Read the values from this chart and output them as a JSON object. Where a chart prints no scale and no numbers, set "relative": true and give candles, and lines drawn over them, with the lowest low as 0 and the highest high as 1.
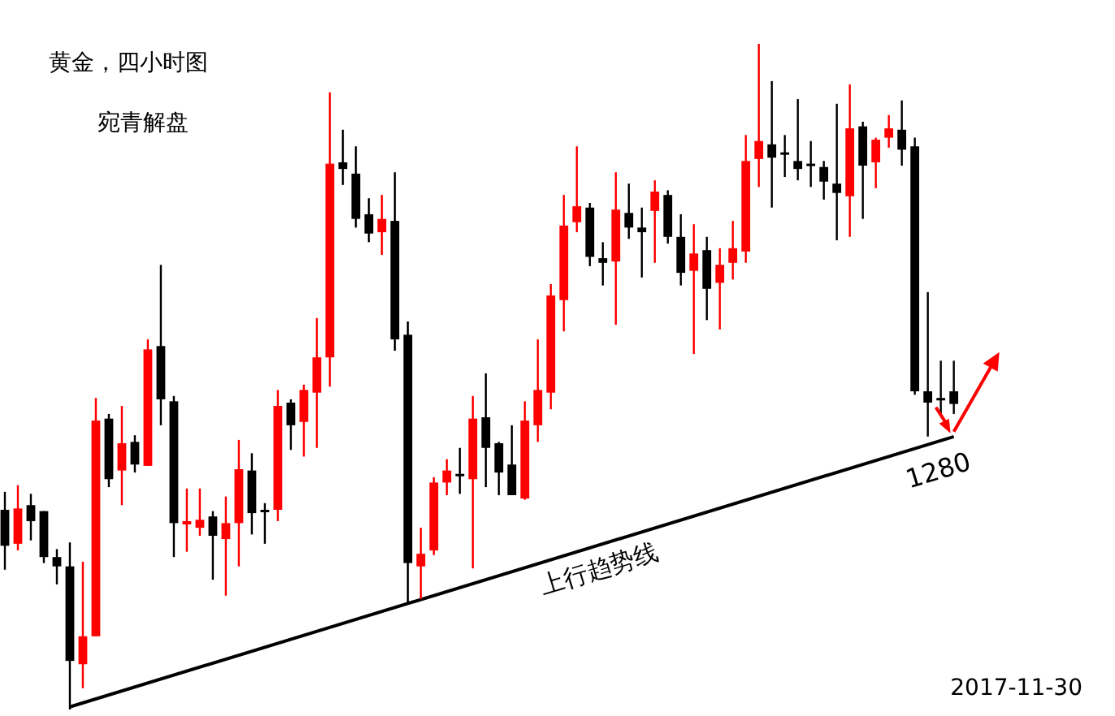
{
  "chart_data": {
    "type": "candlestick",
    "title": "黄金，四小时图",
    "subtitle": "宛青解盘",
    "relative": true,
    "categories": [
      null,
      null,
      null,
      null,
      null,
      null,
      null,
      null,
      null,
      null,
      null,
      null,
      null,
      null,
      null,
      null,
      null,
      null,
      null,
      null,
      null,
      null,
      null,
      null,
      null,
      null,
      null,
      null,
      null,
      null,
      null,
      null,
      null,
      null,
      null,
      null,
      null,
      null,
      null,
      null,
      null,
      null,
      null,
      null,
      null,
      null,
      null,
      null,
      null,
      null,
      null,
      null,
      null,
      null,
      null,
      null,
      null,
      null,
      null,
      null,
      null,
      null,
      null,
      null,
      null,
      null,
      null,
      null,
      null,
      null,
      null,
      null,
      null,
      null
    ],
    "colors": [
      "#000000",
      "#ff0000",
      "#000000",
      "#000000",
      "#000000",
      "#000000",
      "#ff0000",
      "#ff0000",
      "#000000",
      "#ff0000",
      "#000000",
      "#ff0000",
      "#000000",
      "#000000",
      "#ff0000",
      "#ff0000",
      "#000000",
      "#ff0000",
      "#ff0000",
      "#000000",
      "#000000",
      "#ff0000",
      "#000000",
      "#ff0000",
      "#ff0000",
      "#ff0000",
      "#000000",
      "#000000",
      "#000000",
      "#ff0000",
      "#000000",
      "#000000",
      "#ff0000",
      "#ff0000",
      "#ff0000",
      "#000000",
      "#ff0000",
      "#000000",
      "#000000",
      "#000000",
      "#ff0000",
      "#ff0000",
      "#ff0000",
      "#ff0000",
      "#ff0000",
      "#000000",
      "#000000",
      "#ff0000",
      "#000000",
      "#000000",
      "#ff0000",
      "#000000",
      "#000000",
      "#ff0000",
      "#000000",
      "#ff0000",
      "#ff0000",
      "#ff0000",
      "#ff0000",
      "#000000",
      "#000000",
      "#000000",
      "#000000",
      "#000000",
      "#000000",
      "#ff0000",
      "#000000",
      "#ff0000",
      "#ff0000",
      "#000000",
      "#000000",
      "#000000",
      "#000000",
      "#000000"
    ],
    "ohlc": [
      [
        0.3,
        0.327,
        0.21,
        0.246
      ],
      [
        0.249,
        0.337,
        0.239,
        0.302
      ],
      [
        0.307,
        0.324,
        0.254,
        0.283
      ],
      [
        0.298,
        0.298,
        0.22,
        0.229
      ],
      [
        0.229,
        0.241,
        0.188,
        0.215
      ],
      [
        0.215,
        0.251,
        0,
        0.073
      ],
      [
        0.068,
        0.222,
        0.032,
        0.11
      ],
      [
        0.11,
        0.468,
        0.11,
        0.434
      ],
      [
        0.437,
        0.444,
        0.334,
        0.346
      ],
      [
        0.359,
        0.456,
        0.307,
        0.4
      ],
      [
        0.402,
        0.412,
        0.356,
        0.368
      ],
      [
        0.366,
        0.556,
        0.366,
        0.541
      ],
      [
        0.546,
        0.668,
        0.427,
        0.466
      ],
      [
        0.463,
        0.471,
        0.229,
        0.28
      ],
      [
        0.278,
        0.332,
        0.237,
        0.283
      ],
      [
        0.273,
        0.332,
        0.261,
        0.285
      ],
      [
        0.29,
        0.298,
        0.195,
        0.261
      ],
      [
        0.256,
        0.32,
        0.171,
        0.28
      ],
      [
        0.28,
        0.405,
        0.215,
        0.361
      ],
      [
        0.359,
        0.385,
        0.263,
        0.295
      ],
      [
        0.3,
        0.31,
        0.249,
        0.298
      ],
      [
        0.3,
        0.48,
        0.283,
        0.456
      ],
      [
        0.461,
        0.466,
        0.39,
        0.427
      ],
      [
        0.432,
        0.488,
        0.38,
        0.48
      ],
      [
        0.476,
        0.588,
        0.393,
        0.529
      ],
      [
        0.529,
        0.927,
        0.485,
        0.82
      ],
      [
        0.822,
        0.871,
        0.788,
        0.812
      ],
      [
        0.805,
        0.846,
        0.724,
        0.737
      ],
      [
        0.744,
        0.768,
        0.702,
        0.715
      ],
      [
        0.717,
        0.773,
        0.683,
        0.737
      ],
      [
        0.734,
        0.807,
        0.539,
        0.556
      ],
      [
        0.563,
        0.583,
        0.159,
        0.22
      ],
      [
        0.215,
        0.273,
        0.166,
        0.234
      ],
      [
        0.239,
        0.349,
        0.232,
        0.341
      ],
      [
        0.341,
        0.376,
        0.322,
        0.359
      ],
      [
        0.354,
        0.393,
        0.324,
        0.351
      ],
      [
        0.346,
        0.471,
        0.212,
        0.437
      ],
      [
        0.439,
        0.505,
        0.334,
        0.393
      ],
      [
        0.4,
        0.402,
        0.322,
        0.356
      ],
      [
        0.368,
        0.427,
        0.322,
        0.322
      ],
      [
        0.317,
        0.463,
        0.315,
        0.434
      ],
      [
        0.427,
        0.556,
        0.402,
        0.48
      ],
      [
        0.476,
        0.639,
        0.451,
        0.622
      ],
      [
        0.615,
        0.773,
        0.568,
        0.727
      ],
      [
        0.732,
        0.846,
        0.717,
        0.756
      ],
      [
        0.754,
        0.761,
        0.666,
        0.68
      ],
      [
        0.678,
        0.702,
        0.637,
        0.671
      ],
      [
        0.673,
        0.807,
        0.578,
        0.751
      ],
      [
        0.746,
        0.79,
        0.707,
        0.724
      ],
      [
        0.724,
        0.754,
        0.649,
        0.717
      ],
      [
        0.749,
        0.795,
        0.671,
        0.778
      ],
      [
        0.773,
        0.78,
        0.7,
        0.71
      ],
      [
        0.71,
        0.744,
        0.637,
        0.656
      ],
      [
        0.659,
        0.729,
        0.534,
        0.685
      ],
      [
        0.69,
        0.71,
        0.585,
        0.632
      ],
      [
        0.641,
        0.693,
        0.571,
        0.668
      ],
      [
        0.671,
        0.734,
        0.646,
        0.693
      ],
      [
        0.688,
        0.863,
        0.671,
        0.824
      ],
      [
        0.827,
        1,
        0.785,
        0.854
      ],
      [
        0.849,
        0.944,
        0.754,
        0.829
      ],
      [
        0.837,
        0.863,
        0.8,
        0.834
      ],
      [
        0.824,
        0.917,
        0.795,
        0.812
      ],
      [
        0.82,
        0.854,
        0.785,
        0.817
      ],
      [
        0.815,
        0.824,
        0.766,
        0.793
      ],
      [
        0.79,
        0.91,
        0.705,
        0.776
      ],
      [
        0.771,
        0.939,
        0.71,
        0.873
      ],
      [
        0.876,
        0.883,
        0.737,
        0.817
      ],
      [
        0.822,
        0.859,
        0.783,
        0.856
      ],
      [
        0.859,
        0.893,
        0.844,
        0.873
      ],
      [
        0.871,
        0.915,
        0.817,
        0.841
      ],
      [
        0.846,
        0.859,
        0.473,
        0.478
      ],
      [
        0.478,
        0.627,
        0.41,
        0.461
      ],
      [
        0.468,
        0.524,
        0.444,
        0.466
      ],
      [
        0.478,
        0.524,
        0.444,
        0.459
      ]
    ],
    "series": [
      {
        "type": "line",
        "name": "上行趋势线",
        "color": "#000000",
        "values": [
          null,
          null,
          null,
          null,
          null,
          0.004,
          null,
          null,
          null,
          null,
          null,
          null,
          null,
          null,
          null,
          null,
          null,
          null,
          null,
          null,
          null,
          null,
          null,
          null,
          null,
          null,
          null,
          null,
          null,
          null,
          null,
          null,
          null,
          null,
          null,
          null,
          null,
          null,
          null,
          null,
          null,
          null,
          null,
          null,
          null,
          null,
          null,
          null,
          null,
          null,
          null,
          null,
          null,
          null,
          null,
          null,
          null,
          null,
          null,
          null,
          null,
          null,
          null,
          null,
          null,
          null,
          null,
          null,
          null,
          null,
          null,
          null,
          null,
          0.41
        ]
      }
    ],
    "annotations": [
      {
        "text": "1280",
        "y": 0.41
      },
      "2017-11-30"
    ]
  }
}
